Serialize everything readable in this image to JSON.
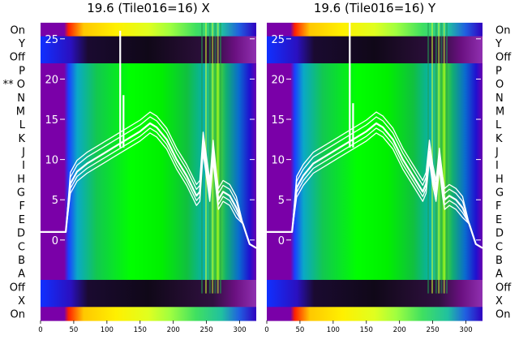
{
  "chart_data": [
    {
      "type": "heatmap",
      "title": "19.6 (Tile016=16) X",
      "xlabel": "",
      "ylabel": "",
      "x_ticks": [
        0,
        50,
        100,
        150,
        200,
        250,
        300
      ],
      "xlim": [
        0,
        325
      ],
      "row_labels": [
        "On",
        "Y",
        "Off",
        "P",
        "** O",
        "N",
        "M",
        "L",
        "K",
        "J",
        "I",
        "H",
        "G",
        "F",
        "E",
        "D",
        "C",
        "B",
        "A",
        "Off",
        "X",
        "On"
      ],
      "overlay": {
        "type": "line",
        "y_ticks": [
          0,
          5,
          10,
          15,
          20,
          25
        ],
        "ylim": [
          -10,
          27
        ],
        "x": [
          0,
          20,
          38,
          45,
          55,
          70,
          90,
          110,
          130,
          150,
          165,
          175,
          190,
          205,
          220,
          235,
          240,
          245,
          250,
          255,
          260,
          265,
          268,
          275,
          285,
          295,
          305,
          315,
          325
        ],
        "y": [
          1.0,
          1.0,
          1.0,
          7.0,
          8.5,
          9.5,
          10.5,
          11.5,
          12.5,
          13.5,
          14.5,
          14.0,
          12.5,
          10.0,
          8.0,
          5.5,
          6.0,
          12.0,
          9.0,
          6.0,
          11.0,
          7.0,
          5.0,
          6.0,
          5.5,
          4.0,
          2.0,
          -0.5,
          -1.0
        ],
        "spikes": [
          {
            "x": 120,
            "y": 26
          },
          {
            "x": 125,
            "y": 18
          }
        ]
      }
    },
    {
      "type": "heatmap",
      "title": "19.6 (Tile016=16) Y",
      "xlabel": "",
      "ylabel": "",
      "x_ticks": [
        0,
        50,
        100,
        150,
        200,
        250,
        300
      ],
      "xlim": [
        0,
        325
      ],
      "row_labels": [
        "On",
        "Y",
        "Off",
        "P",
        "O",
        "N",
        "M",
        "L",
        "K",
        "J",
        "I",
        "H",
        "G",
        "F",
        "E",
        "D",
        "C",
        "B",
        "A",
        "Off",
        "X",
        "On"
      ],
      "overlay": {
        "type": "line",
        "y_ticks": [
          0,
          5,
          10,
          15,
          20,
          25
        ],
        "ylim": [
          -10,
          27
        ],
        "x": [
          0,
          20,
          38,
          45,
          55,
          70,
          90,
          110,
          130,
          150,
          165,
          175,
          190,
          205,
          220,
          235,
          240,
          245,
          250,
          255,
          260,
          265,
          268,
          275,
          285,
          295,
          305,
          315,
          325
        ],
        "y": [
          1.0,
          1.0,
          1.0,
          6.5,
          8.0,
          9.5,
          10.5,
          11.5,
          12.5,
          13.5,
          14.5,
          14.0,
          12.5,
          10.0,
          8.0,
          6.0,
          7.0,
          11.0,
          8.0,
          6.0,
          10.0,
          6.5,
          5.0,
          5.5,
          5.0,
          4.0,
          2.0,
          -0.5,
          -1.0
        ],
        "spikes": [
          {
            "x": 125,
            "y": 27
          },
          {
            "x": 130,
            "y": 17
          }
        ]
      }
    }
  ]
}
